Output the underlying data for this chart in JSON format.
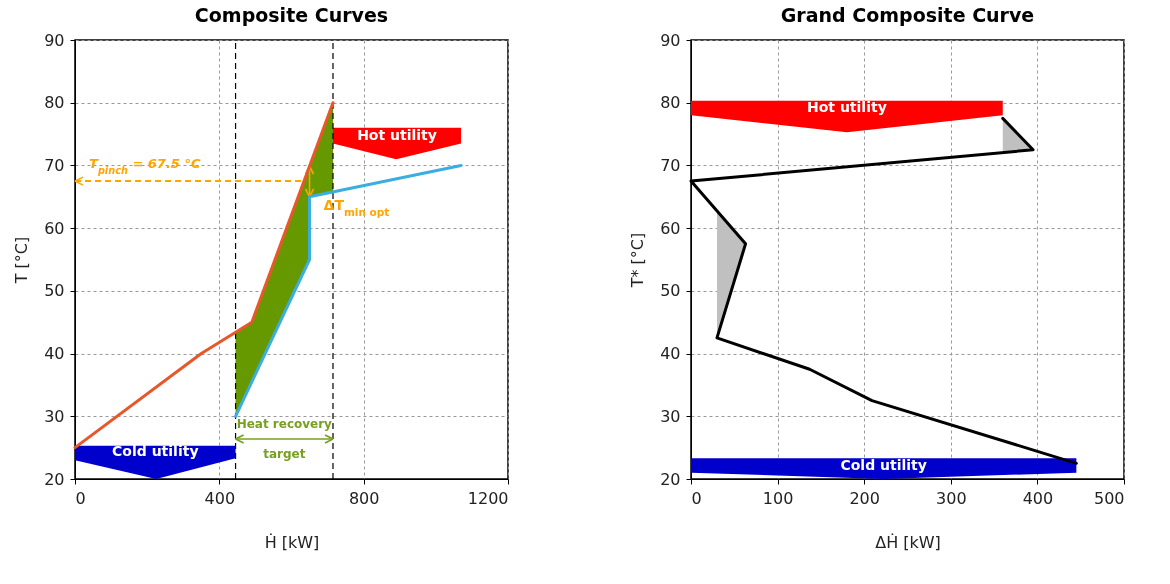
{
  "chart_data": [
    {
      "type": "line",
      "title": "Composite Curves",
      "xlabel": "Ḣ [kW]",
      "ylabel": "T [°C]",
      "xlim": [
        0,
        1200
      ],
      "xticks": [
        0,
        400,
        800,
        1200
      ],
      "ylim": [
        20,
        90
      ],
      "yticks": [
        20,
        30,
        40,
        50,
        60,
        70,
        80,
        90
      ],
      "grid": true,
      "series": [
        {
          "type": "area",
          "color": "#669900",
          "x": [
            445,
            490,
            715,
            715,
            650,
            650,
            445
          ],
          "values": [
            43.4,
            45,
            80,
            65.8,
            65,
            55,
            30
          ]
        },
        {
          "type": "area",
          "name": "Hot utility",
          "color": "#ff0000",
          "x": [
            715,
            1070,
            1070,
            890,
            715
          ],
          "values": [
            76,
            76,
            73.5,
            71,
            73.5
          ]
        },
        {
          "type": "area",
          "name": "Cold utility",
          "color": "#0000cc",
          "x": [
            0,
            445,
            445,
            225,
            0
          ],
          "values": [
            25.3,
            25.3,
            23.3,
            20,
            23
          ]
        },
        {
          "type": "line",
          "color": "#e8572a",
          "x": [
            0,
            350,
            490,
            715
          ],
          "values": [
            25,
            40,
            45,
            80
          ]
        },
        {
          "type": "line",
          "color": "#3aaee0",
          "x": [
            445,
            650,
            650,
            1070
          ],
          "values": [
            30,
            55,
            65,
            70
          ]
        }
      ],
      "ref_lines": [
        {
          "axis": "y",
          "value": 67.5,
          "label": "T$_{pinch}$ = 67.5 °C",
          "color": "#ffa500",
          "line_style": "dashed"
        },
        {
          "axis": "x",
          "value": 445,
          "color": "#000000",
          "line_style": "dashed"
        },
        {
          "axis": "x",
          "value": 715,
          "color": "#000000",
          "line_style": "dashed"
        }
      ],
      "annotations": [
        "Heat recovery target",
        {
          "text": "ΔT$_{min opt}$",
          "x": 650,
          "y": 67.5
        }
      ]
    },
    {
      "type": "line",
      "title": "Grand Composite Curve",
      "xlabel": "ΔḢ [kW]",
      "ylabel": "T* [°C]",
      "xlim": [
        0,
        500
      ],
      "xticks": [
        0,
        100,
        200,
        300,
        400,
        500
      ],
      "ylim": [
        20,
        90
      ],
      "yticks": [
        20,
        30,
        40,
        50,
        60,
        70,
        80,
        90
      ],
      "grid": true,
      "series": [
        {
          "type": "area",
          "color": "#c0c0c0",
          "x": [
            360,
            395,
            360
          ],
          "values": [
            77.5,
            72.5,
            72
          ]
        },
        {
          "type": "area",
          "color": "#c0c0c0",
          "x": [
            30,
            63,
            30
          ],
          "values": [
            42.5,
            57.5,
            62.5
          ]
        },
        {
          "type": "area",
          "name": "Hot utility",
          "color": "#ff0000",
          "x": [
            0,
            360,
            360,
            180,
            0
          ],
          "values": [
            80.3,
            80.3,
            78,
            75.3,
            78
          ]
        },
        {
          "type": "area",
          "name": "Cold utility",
          "color": "#0000cc",
          "x": [
            0,
            445,
            445,
            222,
            0
          ],
          "values": [
            23.3,
            23.3,
            21,
            20,
            21
          ]
        },
        {
          "type": "line",
          "color": "#000000",
          "x": [
            360,
            395,
            0,
            63,
            30,
            137,
            209,
            445
          ],
          "values": [
            77.5,
            72.5,
            67.5,
            57.5,
            42.5,
            37.5,
            32.5,
            22.5
          ]
        }
      ]
    }
  ]
}
